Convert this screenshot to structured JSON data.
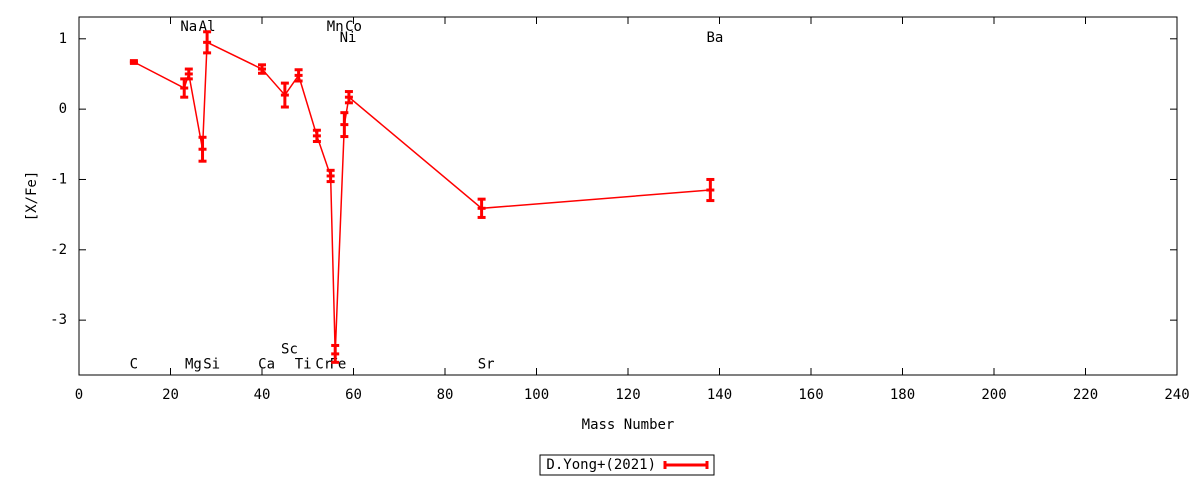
{
  "chart_data": {
    "type": "errorline",
    "xlabel": "Mass Number",
    "ylabel": "[X/Fe]",
    "xlim": [
      0,
      240
    ],
    "xticks": [
      0,
      20,
      40,
      60,
      80,
      100,
      120,
      140,
      160,
      180,
      200,
      220,
      240
    ],
    "ylim": [
      -3.78,
      1.31
    ],
    "yticks": [
      -3,
      -2,
      -1,
      0,
      1
    ],
    "series": [
      {
        "name": "D.Yong+(2021)",
        "color": "#ff0000",
        "x": [
          12,
          23,
          24,
          27,
          28,
          40,
          45,
          48,
          52,
          55,
          56,
          58,
          59,
          88,
          138
        ],
        "values": [
          0.67,
          0.3,
          0.5,
          -0.57,
          0.95,
          0.57,
          0.2,
          0.48,
          -0.38,
          -0.95,
          -3.48,
          -0.22,
          0.17,
          -1.41,
          -1.15
        ],
        "errors": [
          0.02,
          0.13,
          0.07,
          0.17,
          0.15,
          0.06,
          0.17,
          0.08,
          0.08,
          0.08,
          0.12,
          0.17,
          0.08,
          0.13,
          0.15
        ]
      }
    ],
    "annotations": [
      {
        "text": "C",
        "x": 12,
        "y": -3.63
      },
      {
        "text": "Na",
        "x": 24,
        "y": 1.17
      },
      {
        "text": "Al",
        "x": 28,
        "y": 1.17
      },
      {
        "text": "Mg",
        "x": 25,
        "y": -3.63
      },
      {
        "text": "Si",
        "x": 29,
        "y": -3.63
      },
      {
        "text": "Ca",
        "x": 41,
        "y": -3.63
      },
      {
        "text": "Sc",
        "x": 46,
        "y": -3.42
      },
      {
        "text": "Ti",
        "x": 49,
        "y": -3.63
      },
      {
        "text": "Cr",
        "x": 53.5,
        "y": -3.63
      },
      {
        "text": "Fe",
        "x": 56.6,
        "y": -3.63
      },
      {
        "text": "Mn",
        "x": 56,
        "y": 1.17
      },
      {
        "text": "Co",
        "x": 60,
        "y": 1.17
      },
      {
        "text": "Ni",
        "x": 58.8,
        "y": 1.01
      },
      {
        "text": "Sr",
        "x": 89,
        "y": -3.63
      },
      {
        "text": "Ba",
        "x": 139,
        "y": 1.01
      }
    ],
    "legend": "bottom"
  }
}
